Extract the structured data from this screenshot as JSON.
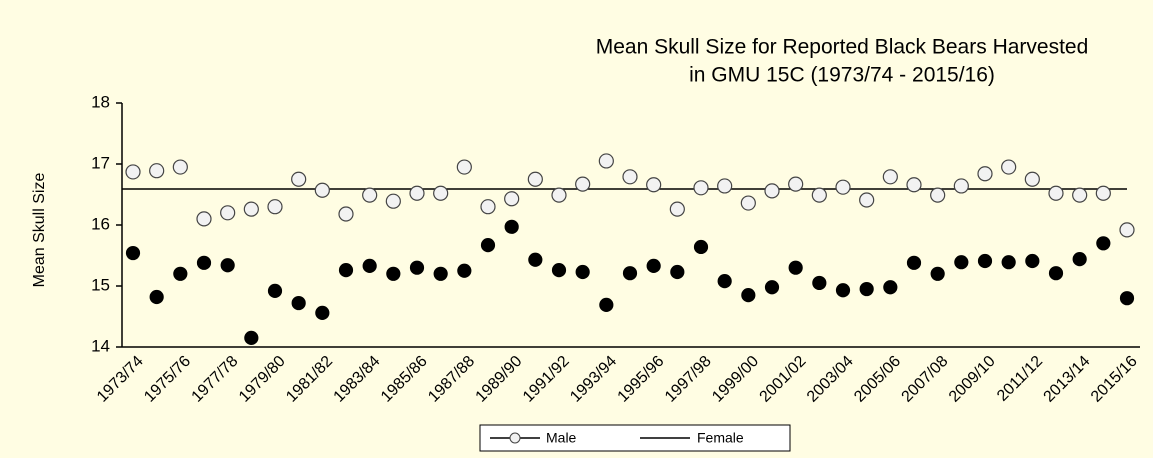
{
  "chart_data": {
    "type": "scatter",
    "title": [
      "Mean Skull Size for Reported Black Bears Harvested",
      "in GMU 15C  (1973/74 - 2015/16)"
    ],
    "y_label": "Mean Skull Size",
    "categories": [
      "1973/74",
      null,
      "1975/76",
      null,
      "1977/78",
      null,
      "1979/80",
      null,
      "1981/82",
      null,
      "1983/84",
      null,
      "1985/86",
      null,
      "1987/88",
      null,
      "1989/90",
      null,
      "1991/92",
      null,
      "1993/94",
      null,
      "1995/96",
      null,
      "1997/98",
      null,
      "1999/00",
      null,
      "2001/02",
      null,
      "2003/04",
      null,
      "2005/06",
      null,
      "2007/08",
      null,
      "2009/10",
      null,
      "2011/12",
      null,
      "2013/14",
      null,
      "2015/16"
    ],
    "series": [
      {
        "name": "Male",
        "color": "#f2f2f2",
        "values": [
          16.87,
          16.89,
          16.95,
          16.1,
          16.2,
          16.26,
          16.3,
          16.75,
          16.57,
          16.18,
          16.49,
          16.39,
          16.52,
          16.52,
          16.95,
          16.3,
          16.43,
          16.75,
          16.49,
          16.67,
          17.05,
          16.79,
          16.66,
          16.26,
          16.61,
          16.64,
          16.36,
          16.56,
          16.67,
          16.49,
          16.62,
          16.41,
          16.79,
          16.66,
          16.49,
          16.64,
          16.84,
          16.95,
          16.75,
          16.52,
          16.49,
          16.52,
          15.92
        ]
      },
      {
        "name": "Female",
        "color": "#000000",
        "values": [
          15.54,
          14.82,
          15.2,
          15.38,
          15.34,
          14.15,
          14.92,
          14.72,
          14.56,
          15.26,
          15.33,
          15.2,
          15.3,
          15.2,
          15.25,
          15.67,
          15.97,
          15.43,
          15.26,
          15.23,
          14.69,
          15.21,
          15.33,
          15.23,
          15.64,
          15.08,
          14.85,
          14.98,
          15.3,
          15.05,
          14.93,
          14.95,
          14.98,
          15.38,
          15.2,
          15.39,
          15.41,
          15.39,
          15.41,
          15.21,
          15.44,
          15.7,
          14.8
        ]
      }
    ],
    "mean_line": 16.59,
    "ylim": [
      14,
      18
    ],
    "yticks": [
      14,
      15,
      16,
      17,
      18
    ]
  }
}
